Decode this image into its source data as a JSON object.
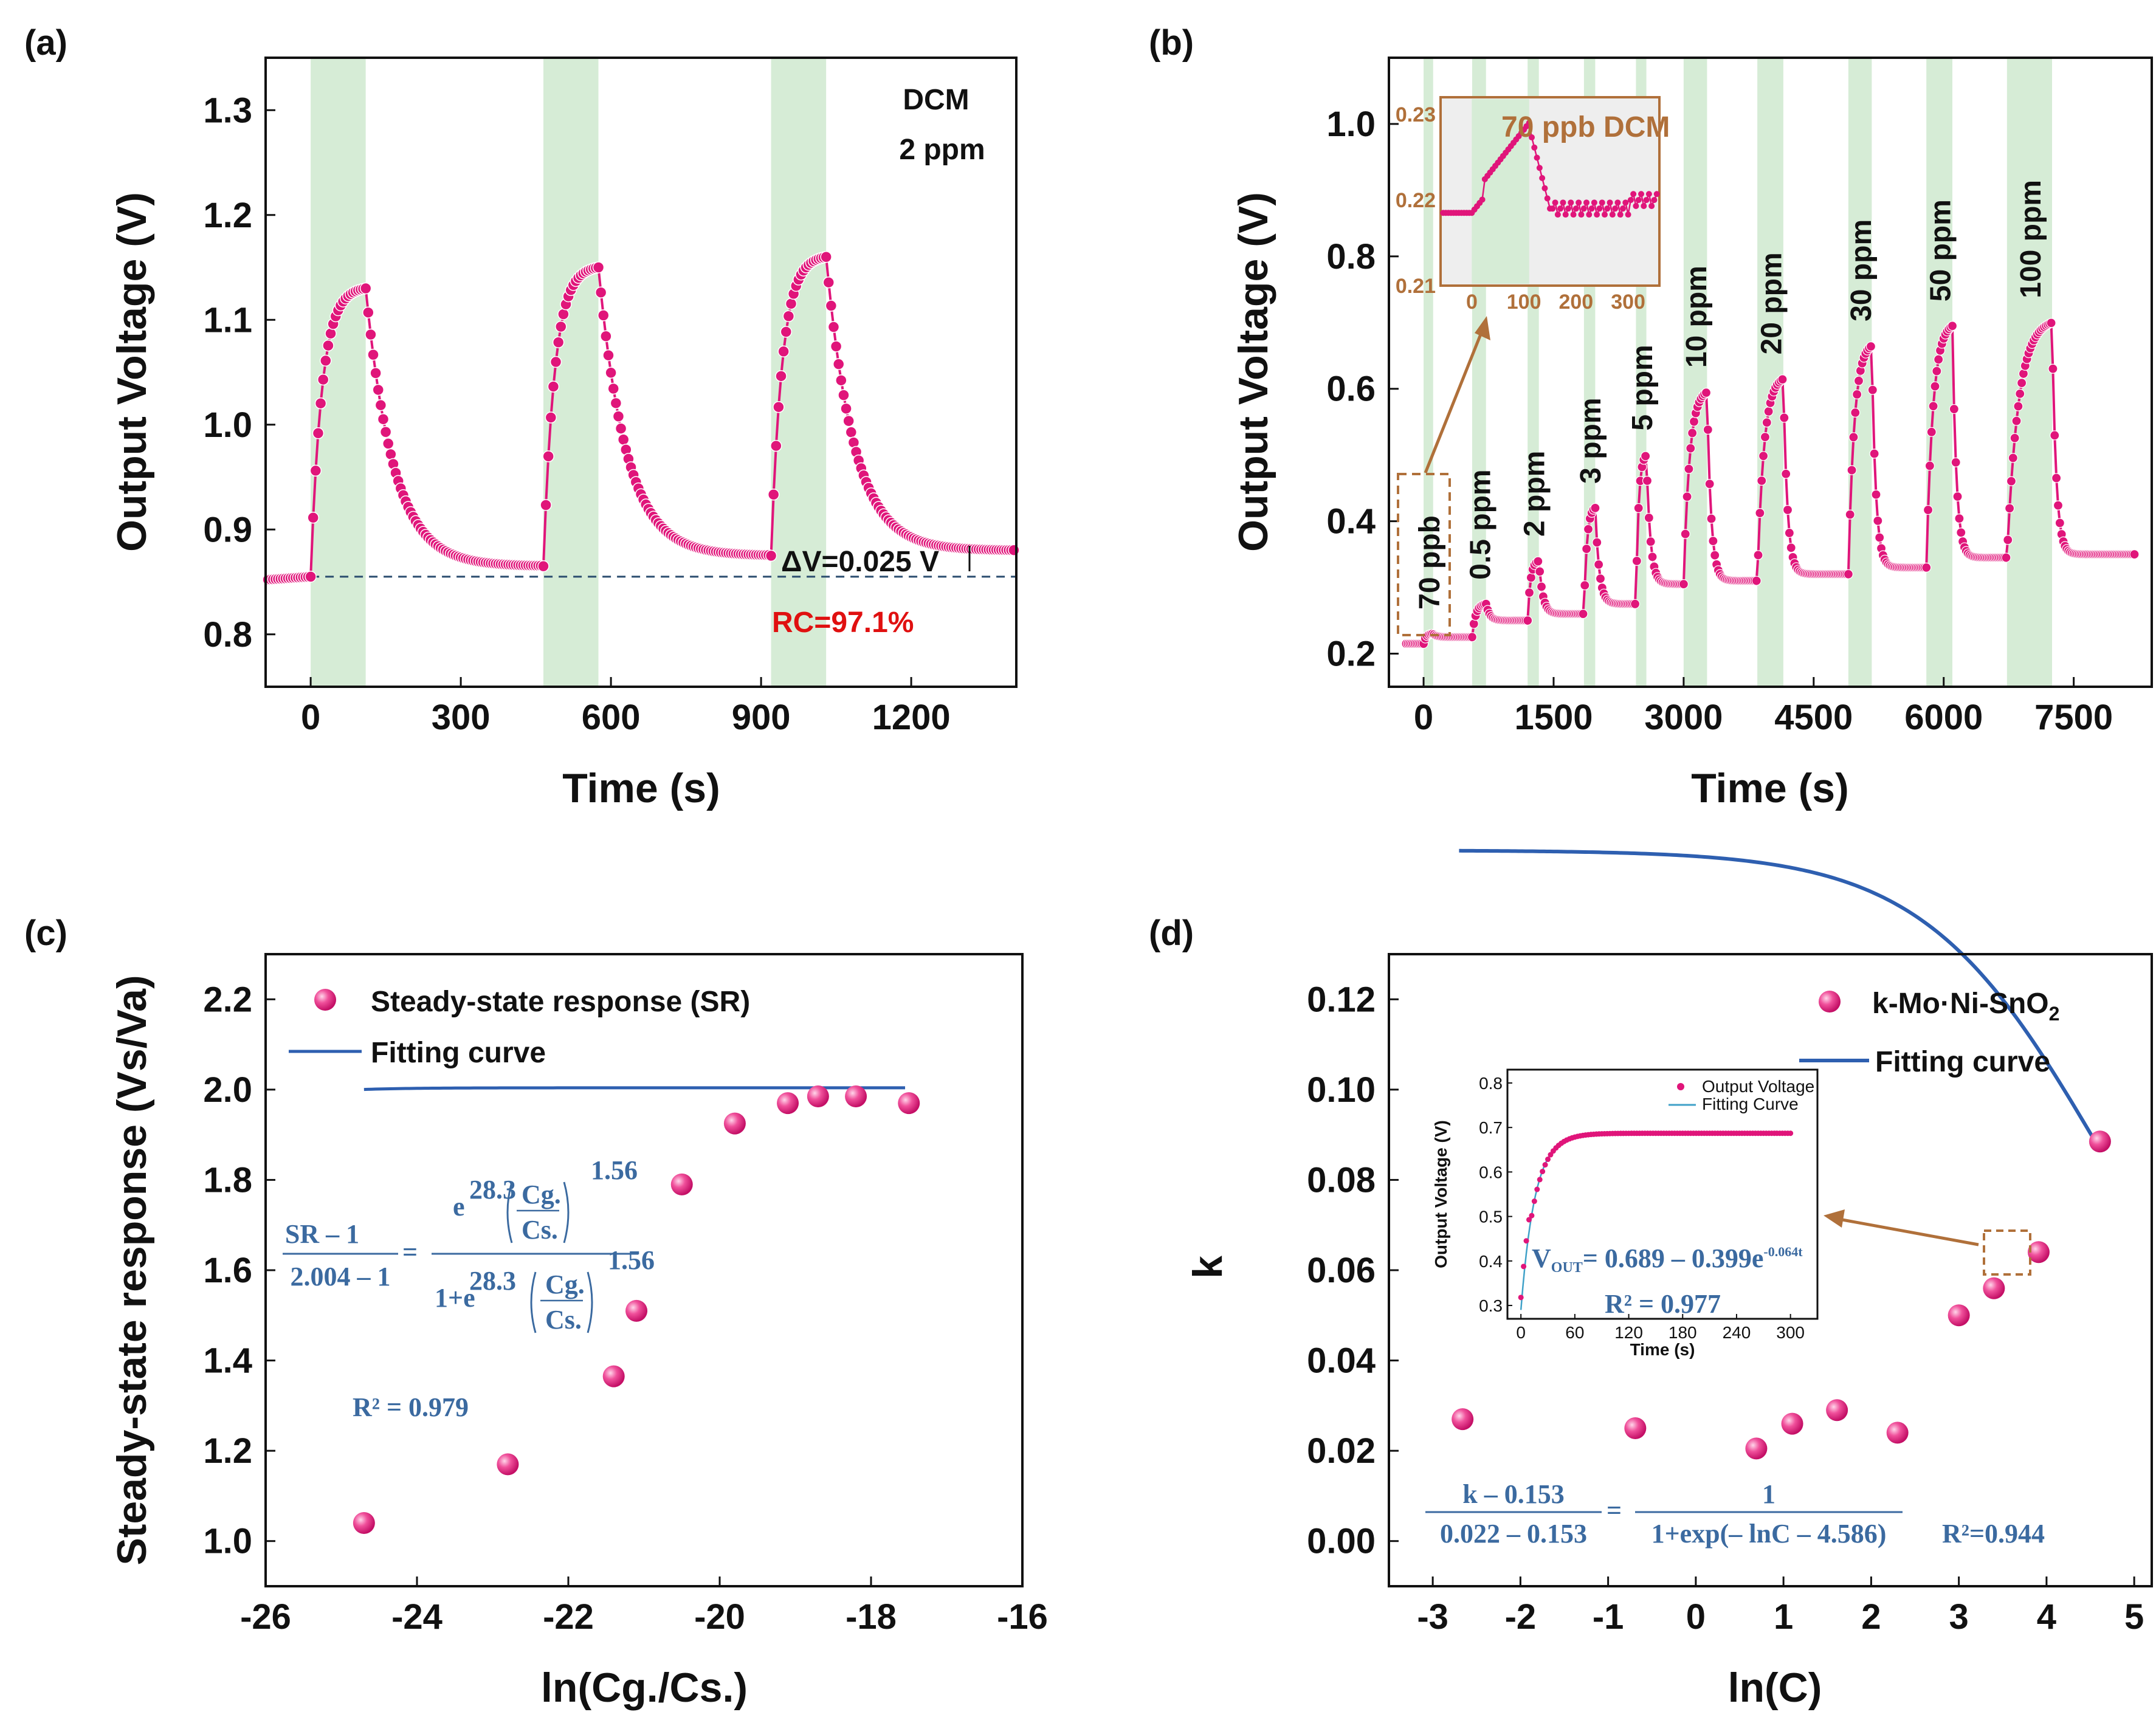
{
  "colors": {
    "pink": "#e0157a",
    "band": "#d6ecd6",
    "fit": "#2e5fb0",
    "brown": "#b0703a",
    "eq": "#3b6aa0",
    "red": "#e01010"
  },
  "chart_data": [
    {
      "panel": "(a)",
      "type": "line",
      "xlabel": "Time (s)",
      "ylabel": "Output Voltage (V)",
      "xlim": [
        -90,
        1410
      ],
      "ylim": [
        0.75,
        1.35
      ],
      "xticks": [
        0,
        300,
        600,
        900,
        1200
      ],
      "yticks": [
        0.8,
        0.9,
        1.0,
        1.1,
        1.2,
        1.3
      ],
      "tick_labels_x": [
        "0",
        "300",
        "600",
        "900",
        "1200"
      ],
      "tick_labels_y": [
        "0.8",
        "0.9",
        "1.0",
        "1.1",
        "1.2",
        "1.3"
      ],
      "bands": [
        [
          0,
          110
        ],
        [
          465,
          575
        ],
        [
          920,
          1030
        ]
      ],
      "baseline": 0.855,
      "cycles": [
        {
          "on": 0,
          "off": 110,
          "base": 0.855,
          "peak": 1.13,
          "end": 0.865
        },
        {
          "on": 465,
          "off": 575,
          "base": 0.865,
          "peak": 1.15,
          "end": 0.875
        },
        {
          "on": 920,
          "off": 1030,
          "base": 0.875,
          "peak": 1.16,
          "end": 0.88
        }
      ],
      "annotations": {
        "gas": "DCM",
        "conc": "2 ppm",
        "dv": "ΔV=0.025 V",
        "rc": "RC=97.1%"
      }
    },
    {
      "panel": "(b)",
      "type": "line",
      "xlabel": "Time (s)",
      "ylabel": "Output Voltage (V)",
      "xlim": [
        -400,
        8400
      ],
      "ylim": [
        0.15,
        1.1
      ],
      "xticks": [
        0,
        1500,
        3000,
        4500,
        6000,
        7500
      ],
      "yticks": [
        0.2,
        0.4,
        0.6,
        0.8,
        1.0
      ],
      "tick_labels_x": [
        "0",
        "1500",
        "3000",
        "4500",
        "6000",
        "7500"
      ],
      "tick_labels_y": [
        "0.2",
        "0.4",
        "0.6",
        "0.8",
        "1.0"
      ],
      "steps": [
        {
          "label": "70 ppb",
          "on": 0,
          "off": 110,
          "base": 0.215,
          "peak": 0.23
        },
        {
          "label": "0.5 ppm",
          "on": 560,
          "off": 720,
          "base": 0.225,
          "peak": 0.275
        },
        {
          "label": "2 ppm",
          "on": 1200,
          "off": 1330,
          "base": 0.25,
          "peak": 0.34
        },
        {
          "label": "3 ppm",
          "on": 1850,
          "off": 1980,
          "base": 0.26,
          "peak": 0.42
        },
        {
          "label": "5 ppm",
          "on": 2450,
          "off": 2570,
          "base": 0.275,
          "peak": 0.5
        },
        {
          "label": "10 ppm",
          "on": 3000,
          "off": 3270,
          "base": 0.305,
          "peak": 0.595
        },
        {
          "label": "20 ppm",
          "on": 3850,
          "off": 4150,
          "base": 0.31,
          "peak": 0.615
        },
        {
          "label": "30 ppm",
          "on": 4900,
          "off": 5170,
          "base": 0.32,
          "peak": 0.665
        },
        {
          "label": "50 ppm",
          "on": 5800,
          "off": 6100,
          "base": 0.33,
          "peak": 0.695
        },
        {
          "label": "100 ppm",
          "on": 6730,
          "off": 7250,
          "base": 0.345,
          "peak": 0.7
        }
      ],
      "inset": {
        "title": "70 ppb DCM",
        "xticks": [
          "0",
          "100",
          "200",
          "300"
        ],
        "yticks": [
          "0.21",
          "0.22",
          "0.23"
        ],
        "xlim": [
          -60,
          360
        ],
        "ylim": [
          0.21,
          0.232
        ]
      }
    },
    {
      "panel": "(c)",
      "type": "scatter",
      "xlabel": "ln(Cg./Cs.)",
      "ylabel": "Steady-state response (Vs/Va)",
      "xlim": [
        -26,
        -16
      ],
      "ylim": [
        0.9,
        2.3
      ],
      "xticks": [
        -26,
        -24,
        -22,
        -20,
        -18,
        -16
      ],
      "yticks": [
        1.0,
        1.2,
        1.4,
        1.6,
        1.8,
        2.0,
        2.2
      ],
      "tick_labels_x": [
        "-26",
        "-24",
        "-22",
        "-20",
        "-18",
        "-16"
      ],
      "tick_labels_y": [
        "1.0",
        "1.2",
        "1.4",
        "1.6",
        "1.8",
        "2.0",
        "2.2"
      ],
      "x": [
        -24.7,
        -22.8,
        -21.4,
        -21.1,
        -20.5,
        -19.8,
        -19.1,
        -18.7,
        -18.2,
        -17.5
      ],
      "y": [
        1.04,
        1.17,
        1.365,
        1.51,
        1.79,
        1.925,
        1.97,
        1.985,
        1.985,
        1.97
      ],
      "fit": {
        "A": 2.004,
        "B": 1.0,
        "a": 28.3,
        "n": 1.56
      },
      "legend": [
        "Steady-state response (SR)",
        "Fitting curve"
      ],
      "r2": "R² = 0.979",
      "eq": {
        "num_l": "SR – 1",
        "den_l": "2.004 – 1",
        "exp": "28.3",
        "pow": "1.56",
        "cg": "Cg.",
        "cs": "Cs.",
        "onep": "1+e"
      }
    },
    {
      "panel": "(d)",
      "type": "scatter",
      "xlabel": "ln(C)",
      "ylabel": "k",
      "xlim": [
        -3.5,
        5.2
      ],
      "ylim": [
        -0.01,
        0.13
      ],
      "xticks": [
        -3,
        -2,
        -1,
        0,
        1,
        2,
        3,
        4,
        5
      ],
      "yticks": [
        0.0,
        0.02,
        0.04,
        0.06,
        0.08,
        0.1,
        0.12
      ],
      "tick_labels_x": [
        "-3",
        "-2",
        "-1",
        "0",
        "1",
        "2",
        "3",
        "4",
        "5"
      ],
      "tick_labels_y": [
        "0.00",
        "0.02",
        "0.04",
        "0.06",
        "0.08",
        "0.10",
        "0.12"
      ],
      "x": [
        -2.66,
        -0.69,
        0.69,
        1.1,
        1.61,
        2.3,
        3.0,
        3.4,
        3.91,
        4.61
      ],
      "y": [
        0.027,
        0.025,
        0.0205,
        0.026,
        0.029,
        0.024,
        0.05,
        0.056,
        0.064,
        0.0885
      ],
      "fit": {
        "A": 0.153,
        "B": 0.022,
        "x0": 4.586
      },
      "legend": [
        "k-Mo·Ni-SnO₂",
        "Fitting curve"
      ],
      "r2": "R²=0.944",
      "eq": {
        "num_l": "k – 0.153",
        "den_l": "0.022 – 0.153",
        "num_r": "1",
        "den_r": "1+exp(– lnC – 4.586)"
      },
      "inset": {
        "xlabel": "Time (s)",
        "ylabel": "Output Voltage (V)",
        "xlim": [
          -15,
          330
        ],
        "ylim": [
          0.27,
          0.83
        ],
        "xticks": [
          "0",
          "60",
          "120",
          "180",
          "240",
          "300"
        ],
        "yticks": [
          "0.3",
          "0.4",
          "0.5",
          "0.6",
          "0.7",
          "0.8"
        ],
        "legend": [
          "Output Voltage",
          "Fitting Curve"
        ],
        "eq": "VOUT = 0.689 – 0.399e-0.064t",
        "r2": "R² = 0.977",
        "A": 0.689,
        "B": 0.399,
        "k": 0.064
      }
    }
  ],
  "panel_labels": [
    "(a)",
    "(b)",
    "(c)",
    "(d)"
  ],
  "text": {
    "a_dcm": "DCM",
    "a_conc": "2 ppm",
    "a_dv": "ΔV=0.025 V",
    "a_rc": "RC=97.1%",
    "b_inset_title": "70 ppb DCM",
    "c_leg1": "Steady-state response (SR)",
    "c_leg2": "Fitting curve",
    "c_r2": "R",
    "d_leg1": "k-Mo·Ni-SnO",
    "d_leg2": "Fitting curve",
    "d_r2": "R²=0.944",
    "d_in_leg1": "Output Voltage",
    "d_in_leg2": "Fitting Curve",
    "d_in_r2": "R² = 0.977"
  }
}
